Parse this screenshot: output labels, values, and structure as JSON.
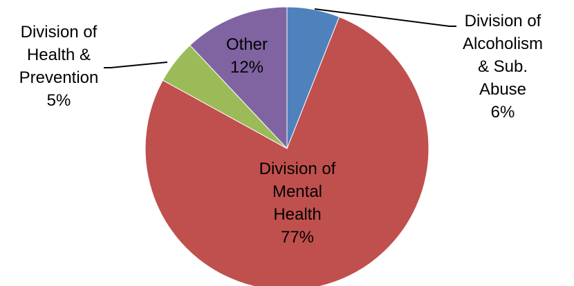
{
  "chart_data": {
    "type": "pie",
    "categories": [
      "Division of\nAlcoholism\n& Sub.\nAbuse",
      "Division of\nMental\nHealth",
      "Division of\nHealth &\nPrevention",
      "Other"
    ],
    "values": [
      6,
      77,
      5,
      12
    ],
    "value_labels": [
      "6%",
      "77%",
      "5%",
      "12%"
    ],
    "colors": [
      "#4f81bd",
      "#c0504d",
      "#9bbb59",
      "#8064a2"
    ]
  }
}
